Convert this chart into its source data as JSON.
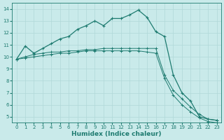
{
  "xlabel": "Humidex (Indice chaleur)",
  "xlim": [
    -0.5,
    23.5
  ],
  "ylim": [
    4.5,
    14.5
  ],
  "xticks": [
    0,
    1,
    2,
    3,
    4,
    5,
    6,
    7,
    8,
    9,
    10,
    11,
    12,
    13,
    14,
    15,
    16,
    17,
    18,
    19,
    20,
    21,
    22,
    23
  ],
  "yticks": [
    5,
    6,
    7,
    8,
    9,
    10,
    11,
    12,
    13,
    14
  ],
  "bg_color": "#c9eaea",
  "grid_color": "#b0d8d8",
  "line_color": "#1e7b70",
  "line1_x": [
    0,
    1,
    2,
    3,
    4,
    5,
    6,
    7,
    8,
    9,
    10,
    11,
    12,
    13,
    14,
    15,
    16,
    17,
    18,
    19,
    20,
    21,
    22,
    23
  ],
  "line1_y": [
    9.8,
    10.9,
    10.3,
    10.7,
    11.1,
    11.5,
    11.7,
    12.3,
    12.6,
    13.0,
    12.6,
    13.2,
    13.2,
    13.5,
    13.9,
    13.3,
    12.1,
    11.7,
    8.5,
    7.0,
    6.3,
    5.0,
    4.8,
    4.7
  ],
  "line2_x": [
    0,
    1,
    2,
    3,
    4,
    5,
    6,
    7,
    8,
    9,
    10,
    11,
    12,
    13,
    14,
    15,
    16,
    17,
    18,
    19,
    20,
    21,
    22,
    23
  ],
  "line2_y": [
    9.8,
    10.0,
    10.2,
    10.3,
    10.4,
    10.4,
    10.5,
    10.5,
    10.6,
    10.6,
    10.7,
    10.7,
    10.7,
    10.7,
    10.7,
    10.7,
    10.7,
    8.5,
    7.2,
    6.5,
    5.8,
    5.2,
    4.8,
    4.7
  ],
  "line3_x": [
    0,
    1,
    2,
    3,
    4,
    5,
    6,
    7,
    8,
    9,
    10,
    11,
    12,
    13,
    14,
    15,
    16,
    17,
    18,
    19,
    20,
    21,
    22,
    23
  ],
  "line3_y": [
    9.8,
    9.9,
    10.0,
    10.1,
    10.2,
    10.3,
    10.3,
    10.4,
    10.5,
    10.5,
    10.5,
    10.5,
    10.5,
    10.5,
    10.5,
    10.4,
    10.3,
    8.2,
    6.8,
    6.0,
    5.4,
    4.9,
    4.6,
    4.5
  ]
}
